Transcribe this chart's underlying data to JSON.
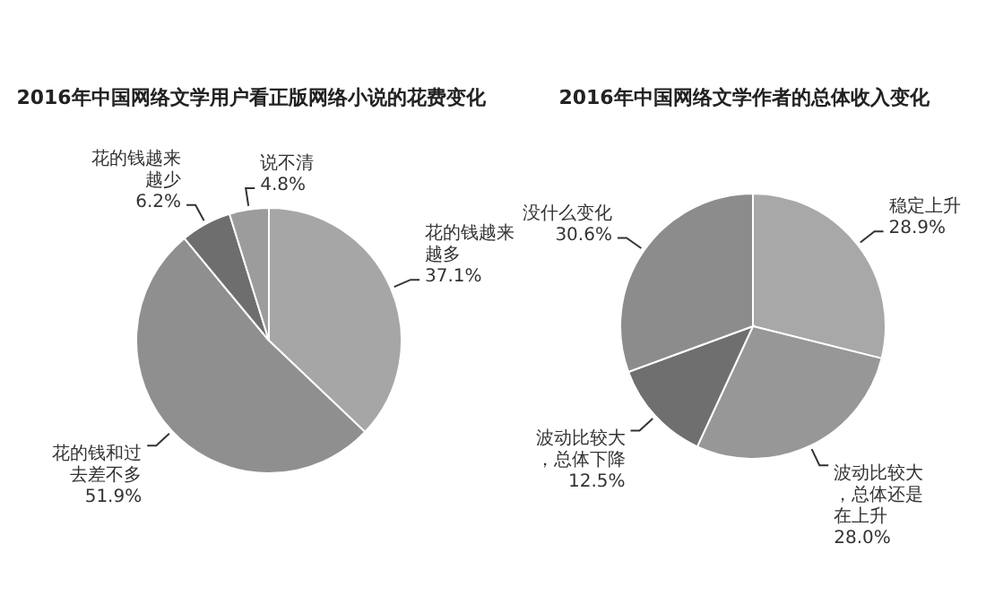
{
  "chart_data": [
    {
      "type": "pie",
      "title": "2016年中国网络文学用户看正版网络小说的花费变化",
      "categories": [
        "花的钱越来越多",
        "花的钱和过去差不多",
        "花的钱越来越少",
        "说不清"
      ],
      "values": [
        37.1,
        51.9,
        6.2,
        4.8
      ],
      "value_labels": [
        "37.1%",
        "51.9%",
        "6.2%",
        "4.8%"
      ],
      "colors": [
        "#a6a6a6",
        "#8f8f8f",
        "#6e6e6e",
        "#9c9c9c"
      ]
    },
    {
      "type": "pie",
      "title": "2016年中国网络文学作者的总体收入变化",
      "categories": [
        "稳定上升",
        "波动比较大，总体还是在上升",
        "波动比较大，总体下降",
        "没什么变化"
      ],
      "values": [
        28.9,
        28.0,
        12.5,
        30.6
      ],
      "value_labels": [
        "28.9%",
        "28.0%",
        "12.5%",
        "30.6%"
      ],
      "colors": [
        "#a8a8a8",
        "#979797",
        "#6f6f6f",
        "#8c8c8c"
      ]
    }
  ]
}
